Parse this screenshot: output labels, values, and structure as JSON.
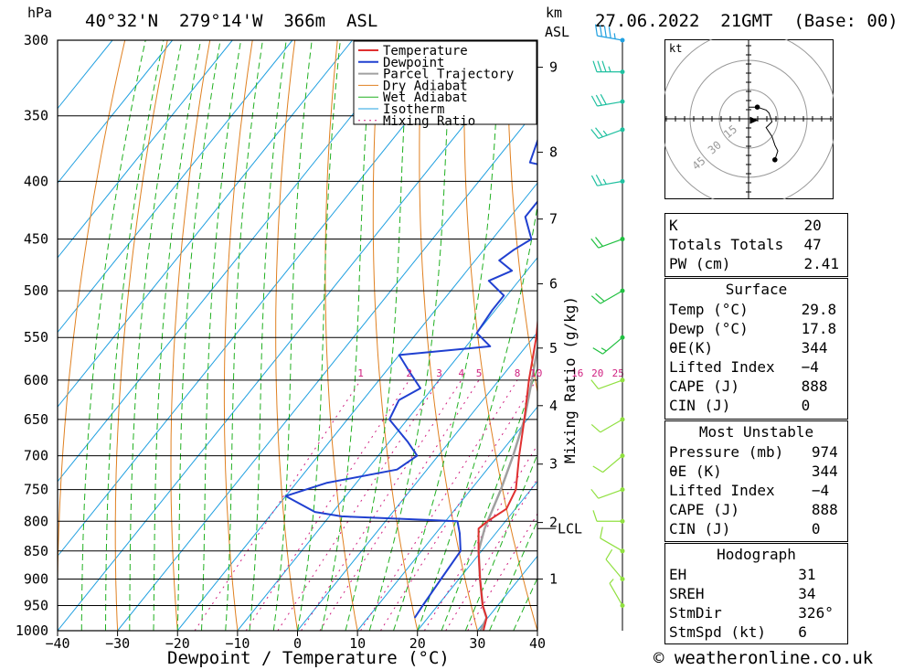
{
  "header": {
    "unit_left": "hPa",
    "location": "40°32'N  279°14'W  366m  ASL",
    "unit_km": "km",
    "unit_asl": "ASL",
    "datetime": "27.06.2022  21GMT  (Base: 00)"
  },
  "footer": {
    "copyright": "© weatheronline.co.uk"
  },
  "colors": {
    "temperature": "#e03030",
    "dewpoint": "#2040d0",
    "parcel": "#a0a0a0",
    "dry_adiabat": "#e08020",
    "wet_adiabat": "#20b020",
    "isotherm": "#20a0e0",
    "mixing_ratio": "#d02080",
    "wind": "#7ed640"
  },
  "chart_data": {
    "type": "line",
    "title": "",
    "xlabel": "Dewpoint / Temperature (°C)",
    "ylabel_right": "Mixing Ratio (g/kg)",
    "xlim": [
      -40,
      40
    ],
    "ylim_hpa": [
      1000,
      300
    ],
    "x_ticks": [
      "−40",
      "−30",
      "−20",
      "−10",
      "0",
      "10",
      "20",
      "30",
      "40"
    ],
    "pressure_levels": [
      300,
      350,
      400,
      450,
      500,
      550,
      600,
      650,
      700,
      750,
      800,
      850,
      900,
      950,
      1000
    ],
    "height_km_ticks": [
      {
        "p": 317,
        "label": "9"
      },
      {
        "p": 377,
        "label": "8"
      },
      {
        "p": 432,
        "label": "7"
      },
      {
        "p": 493,
        "label": "6"
      },
      {
        "p": 562,
        "label": "5"
      },
      {
        "p": 632,
        "label": "4"
      },
      {
        "p": 712,
        "label": "3"
      },
      {
        "p": 802,
        "label": "2"
      },
      {
        "p": 900,
        "label": "1"
      }
    ],
    "lcl_label": "LCL",
    "lcl_p": 812,
    "mixing_ratio_labels": [
      "1",
      "2",
      "3",
      "4",
      "5",
      "8",
      "10",
      "16",
      "20",
      "25"
    ],
    "legend": [
      "Temperature",
      "Dewpoint",
      "Parcel Trajectory",
      "Dry Adiabat",
      "Wet Adiabat",
      "Isotherm",
      "Mixing Ratio"
    ],
    "series": [
      {
        "name": "Temperature",
        "points": [
          [
            1000,
            31.0
          ],
          [
            974,
            29.8
          ],
          [
            950,
            27.5
          ],
          [
            900,
            23.5
          ],
          [
            850,
            19.5
          ],
          [
            812,
            16.5
          ],
          [
            800,
            17.0
          ],
          [
            780,
            18.5
          ],
          [
            750,
            17.5
          ],
          [
            700,
            13.5
          ],
          [
            650,
            9.5
          ],
          [
            600,
            5.0
          ],
          [
            550,
            0.5
          ],
          [
            500,
            -5.0
          ],
          [
            450,
            -11.0
          ],
          [
            400,
            -18.0
          ],
          [
            350,
            -26.0
          ],
          [
            320,
            -31.5
          ],
          [
            300,
            -35.5
          ]
        ]
      },
      {
        "name": "Dewpoint",
        "points": [
          [
            974,
            17.8
          ],
          [
            950,
            17.5
          ],
          [
            900,
            17.0
          ],
          [
            850,
            16.5
          ],
          [
            820,
            14.0
          ],
          [
            800,
            12.0
          ],
          [
            798,
            7.0
          ],
          [
            792,
            -8.0
          ],
          [
            785,
            -13.0
          ],
          [
            760,
            -20.0
          ],
          [
            740,
            -15.0
          ],
          [
            720,
            -5.0
          ],
          [
            700,
            -3.5
          ],
          [
            680,
            -7.0
          ],
          [
            650,
            -13.0
          ],
          [
            625,
            -14.0
          ],
          [
            610,
            -12.0
          ],
          [
            590,
            -16.0
          ],
          [
            570,
            -20.0
          ],
          [
            560,
            -6.0
          ],
          [
            545,
            -10.0
          ],
          [
            520,
            -10.5
          ],
          [
            505,
            -10.5
          ],
          [
            490,
            -15.0
          ],
          [
            480,
            -12.5
          ],
          [
            470,
            -16.0
          ],
          [
            460,
            -15.0
          ],
          [
            450,
            -13.5
          ],
          [
            430,
            -17.5
          ],
          [
            415,
            -17.5
          ],
          [
            395,
            -13.0
          ],
          [
            385,
            -24.0
          ],
          [
            360,
            -26.5
          ],
          [
            340,
            -29.0
          ],
          [
            325,
            -24.0
          ],
          [
            310,
            -29.0
          ],
          [
            300,
            -27.0
          ]
        ]
      },
      {
        "name": "Parcel Trajectory",
        "points": [
          [
            1000,
            30.5
          ],
          [
            974,
            29.8
          ],
          [
            950,
            27.5
          ],
          [
            900,
            23.5
          ],
          [
            850,
            19.5
          ],
          [
            812,
            17.5
          ],
          [
            750,
            15.0
          ],
          [
            700,
            12.5
          ],
          [
            650,
            9.5
          ],
          [
            600,
            5.5
          ],
          [
            550,
            1.0
          ],
          [
            500,
            -4.0
          ],
          [
            450,
            -9.5
          ],
          [
            400,
            -16.5
          ],
          [
            365,
            -22.0
          ],
          [
            320,
            -29.0
          ],
          [
            300,
            -32.0
          ]
        ]
      }
    ],
    "wind_profile": [
      {
        "p": 300,
        "dir": 280,
        "kt": 45
      },
      {
        "p": 320,
        "dir": 270,
        "kt": 35
      },
      {
        "p": 340,
        "dir": 260,
        "kt": 30
      },
      {
        "p": 360,
        "dir": 250,
        "kt": 25
      },
      {
        "p": 400,
        "dir": 260,
        "kt": 25
      },
      {
        "p": 450,
        "dir": 250,
        "kt": 20
      },
      {
        "p": 500,
        "dir": 240,
        "kt": 20
      },
      {
        "p": 550,
        "dir": 230,
        "kt": 15
      },
      {
        "p": 600,
        "dir": 250,
        "kt": 10
      },
      {
        "p": 650,
        "dir": 240,
        "kt": 10
      },
      {
        "p": 700,
        "dir": 230,
        "kt": 10
      },
      {
        "p": 750,
        "dir": 250,
        "kt": 10
      },
      {
        "p": 800,
        "dir": 270,
        "kt": 10
      },
      {
        "p": 850,
        "dir": 300,
        "kt": 10
      },
      {
        "p": 900,
        "dir": 320,
        "kt": 10
      },
      {
        "p": 950,
        "dir": 330,
        "kt": 5
      }
    ],
    "hodograph": {
      "unit_label": "kt",
      "ring_labels": [
        "15",
        "30",
        "45"
      ],
      "trace_uv": [
        [
          0,
          4
        ],
        [
          3,
          4
        ],
        [
          6,
          3
        ],
        [
          7,
          2
        ],
        [
          8,
          -1
        ],
        [
          6,
          -3
        ],
        [
          8,
          -6
        ],
        [
          9,
          -9
        ],
        [
          10,
          -11
        ],
        [
          9,
          -14
        ]
      ],
      "storm_motion_uv": [
        2,
        -0.5
      ]
    }
  },
  "indices": {
    "top": [
      {
        "label": "K",
        "value": "20"
      },
      {
        "label": "Totals Totals",
        "value": "47"
      },
      {
        "label": "PW (cm)",
        "value": "2.41"
      }
    ],
    "surface": {
      "title": "Surface",
      "rows": [
        {
          "label": "Temp (°C)",
          "value": "29.8"
        },
        {
          "label": "Dewp (°C)",
          "value": "17.8"
        },
        {
          "label": "θE(K)",
          "value": "344"
        },
        {
          "label": "Lifted Index",
          "value": "−4"
        },
        {
          "label": "CAPE (J)",
          "value": "888"
        },
        {
          "label": "CIN (J)",
          "value": "0"
        }
      ]
    },
    "most_unstable": {
      "title": "Most Unstable",
      "rows": [
        {
          "label": "Pressure (mb)",
          "value": "974"
        },
        {
          "label": "θE (K)",
          "value": "344"
        },
        {
          "label": "Lifted Index",
          "value": "−4"
        },
        {
          "label": "CAPE (J)",
          "value": "888"
        },
        {
          "label": "CIN (J)",
          "value": "0"
        }
      ]
    },
    "hodograph": {
      "title": "Hodograph",
      "rows": [
        {
          "label": "EH",
          "value": "31"
        },
        {
          "label": "SREH",
          "value": "34"
        },
        {
          "label": "StmDir",
          "value": "326°"
        },
        {
          "label": "StmSpd (kt)",
          "value": "6"
        }
      ]
    }
  }
}
